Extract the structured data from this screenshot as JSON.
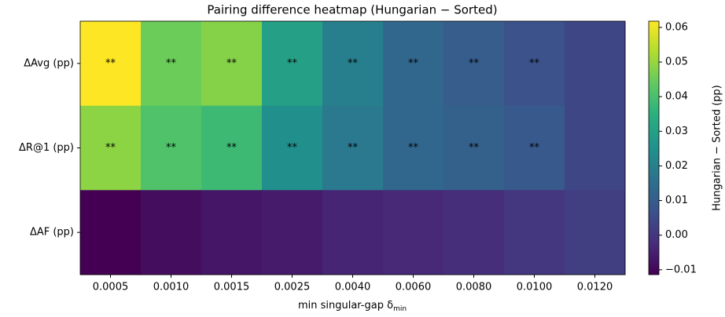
{
  "chart_data": {
    "type": "heatmap",
    "title": "Pairing difference heatmap (Hungarian − Sorted)",
    "xlabel": "min singular-gap δ",
    "xlabel_sub": "min",
    "categories": [
      "0.0005",
      "0.0010",
      "0.0015",
      "0.0025",
      "0.0040",
      "0.0060",
      "0.0080",
      "0.0100",
      "0.0120"
    ],
    "rows": [
      "ΔAvg (pp)",
      "ΔR@1 (pp)",
      "ΔAF (pp)"
    ],
    "values": [
      [
        0.0618,
        0.045,
        0.048,
        0.03,
        0.02,
        0.013,
        0.01,
        0.007,
        0.004
      ],
      [
        0.049,
        0.041,
        0.038,
        0.025,
        0.018,
        0.013,
        0.011,
        0.009,
        0.004
      ],
      [
        -0.0114,
        -0.009,
        -0.007,
        -0.006,
        -0.004,
        -0.003,
        -0.002,
        0.0,
        0.002
      ]
    ],
    "annotations": [
      [
        "**",
        "**",
        "**",
        "**",
        "**",
        "**",
        "**",
        "**",
        null
      ],
      [
        "**",
        "**",
        "**",
        "**",
        "**",
        "**",
        "**",
        "**",
        null
      ],
      [
        null,
        null,
        null,
        null,
        null,
        null,
        null,
        null,
        null
      ]
    ],
    "colormap": "viridis",
    "clim": [
      -0.0114,
      0.0618
    ],
    "colorbar_label": "Hungarian − Sorted (pp)",
    "cticks": [
      {
        "value": -0.01,
        "label": "−0.01"
      },
      {
        "value": 0,
        "label": "0.00"
      },
      0.01,
      0.02,
      0.03,
      0.04,
      0.05,
      0.06
    ]
  }
}
